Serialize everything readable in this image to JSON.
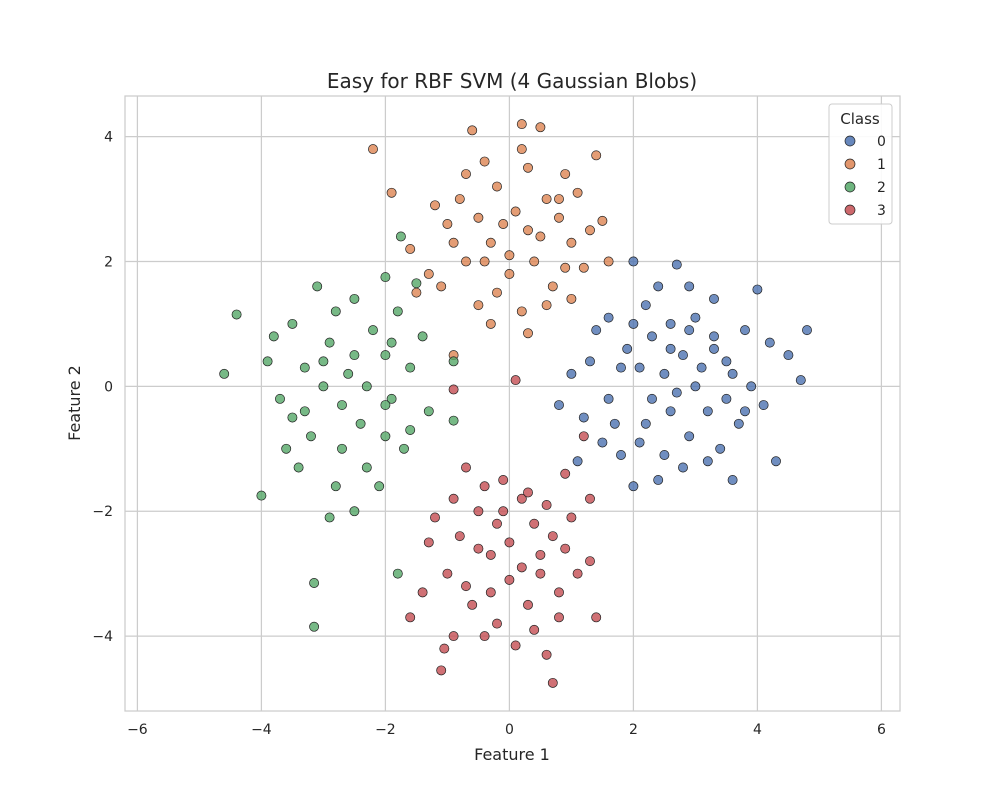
{
  "chart_data": {
    "type": "scatter",
    "title": "Easy for RBF SVM (4 Gaussian Blobs)",
    "xlabel": "Feature 1",
    "ylabel": "Feature 2",
    "xlim": [
      -6.2,
      6.3
    ],
    "ylim": [
      -5.2,
      4.65
    ],
    "xticks": [
      -6,
      -4,
      -2,
      0,
      2,
      4,
      6
    ],
    "yticks": [
      -4,
      -2,
      0,
      2,
      4
    ],
    "grid": true,
    "legend": {
      "title": "Class",
      "position": "top-right"
    },
    "series": [
      {
        "name": "0",
        "color": "#4c72b0",
        "points": [
          [
            2.5,
            0.2
          ],
          [
            3.2,
            -0.4
          ],
          [
            1.8,
            -1.1
          ],
          [
            3.8,
            0.9
          ],
          [
            2.0,
            1.0
          ],
          [
            1.3,
            0.4
          ],
          [
            2.8,
            -1.3
          ],
          [
            3.5,
            0.4
          ],
          [
            2.2,
            -0.6
          ],
          [
            4.1,
            -0.3
          ],
          [
            2.6,
            0.6
          ],
          [
            1.6,
            -0.2
          ],
          [
            3.0,
            0.0
          ],
          [
            2.4,
            -1.5
          ],
          [
            3.7,
            -0.6
          ],
          [
            2.9,
            1.6
          ],
          [
            1.5,
            -0.9
          ],
          [
            3.3,
            0.8
          ],
          [
            2.1,
            0.3
          ],
          [
            4.5,
            0.5
          ],
          [
            4.8,
            0.9
          ],
          [
            4.3,
            -1.2
          ],
          [
            2.0,
            2.0
          ],
          [
            2.7,
            1.95
          ],
          [
            1.0,
            0.2
          ],
          [
            0.8,
            -0.3
          ],
          [
            1.1,
            -1.2
          ],
          [
            3.6,
            -1.5
          ],
          [
            4.0,
            1.55
          ],
          [
            3.3,
            1.4
          ],
          [
            2.3,
            -0.2
          ],
          [
            2.9,
            -0.8
          ],
          [
            1.9,
            0.6
          ],
          [
            3.1,
            0.3
          ],
          [
            2.5,
            -1.1
          ],
          [
            3.9,
            0.0
          ],
          [
            1.7,
            -0.6
          ],
          [
            2.6,
            -0.4
          ],
          [
            3.4,
            -1.0
          ],
          [
            2.2,
            1.3
          ],
          [
            4.7,
            0.1
          ],
          [
            3.0,
            1.1
          ],
          [
            1.4,
            0.9
          ],
          [
            2.8,
            0.5
          ],
          [
            3.6,
            0.2
          ],
          [
            2.3,
            0.8
          ],
          [
            1.8,
            0.3
          ],
          [
            3.2,
            -1.2
          ],
          [
            2.0,
            -1.6
          ],
          [
            2.7,
            -0.1
          ],
          [
            1.2,
            -0.5
          ],
          [
            3.5,
            -0.2
          ],
          [
            2.4,
            1.6
          ],
          [
            4.2,
            0.7
          ],
          [
            1.6,
            1.1
          ],
          [
            2.9,
            0.9
          ],
          [
            3.8,
            -0.4
          ],
          [
            2.1,
            -0.9
          ],
          [
            3.3,
            0.6
          ],
          [
            2.6,
            1.0
          ]
        ]
      },
      {
        "name": "1",
        "color": "#dd8452",
        "points": [
          [
            -0.2,
            3.2
          ],
          [
            0.3,
            2.5
          ],
          [
            -0.7,
            2.0
          ],
          [
            0.6,
            3.0
          ],
          [
            0.0,
            1.8
          ],
          [
            -1.0,
            2.6
          ],
          [
            1.0,
            2.3
          ],
          [
            -0.4,
            3.6
          ],
          [
            0.2,
            4.2
          ],
          [
            -0.6,
            4.1
          ],
          [
            0.5,
            4.15
          ],
          [
            -2.2,
            3.8
          ],
          [
            1.4,
            3.7
          ],
          [
            -1.9,
            3.1
          ],
          [
            1.5,
            2.65
          ],
          [
            -1.5,
            1.5
          ],
          [
            0.2,
            1.2
          ],
          [
            1.2,
            1.9
          ],
          [
            1.6,
            2.0
          ],
          [
            -0.9,
            0.5
          ],
          [
            0.3,
            0.85
          ],
          [
            -0.3,
            2.3
          ],
          [
            0.8,
            2.7
          ],
          [
            -0.5,
            1.3
          ],
          [
            0.9,
            3.4
          ],
          [
            -1.2,
            2.9
          ],
          [
            0.4,
            2.0
          ],
          [
            -0.8,
            3.0
          ],
          [
            0.1,
            2.8
          ],
          [
            -0.2,
            1.5
          ],
          [
            1.1,
            3.1
          ],
          [
            -1.3,
            1.8
          ],
          [
            0.7,
            1.6
          ],
          [
            -0.5,
            2.7
          ],
          [
            0.3,
            3.5
          ],
          [
            -0.9,
            2.3
          ],
          [
            1.3,
            2.5
          ],
          [
            0.0,
            2.1
          ],
          [
            -0.3,
            1.0
          ],
          [
            0.6,
            1.3
          ],
          [
            -1.6,
            2.2
          ],
          [
            0.9,
            1.9
          ],
          [
            -0.7,
            3.4
          ],
          [
            0.2,
            3.8
          ],
          [
            -0.1,
            2.6
          ],
          [
            0.5,
            2.4
          ],
          [
            -1.1,
            1.6
          ],
          [
            1.0,
            1.4
          ],
          [
            -0.4,
            2.0
          ],
          [
            0.8,
            3.0
          ]
        ]
      },
      {
        "name": "2",
        "color": "#55a868",
        "points": [
          [
            -3.0,
            0.0
          ],
          [
            -2.5,
            0.5
          ],
          [
            -3.5,
            -0.5
          ],
          [
            -2.0,
            -0.8
          ],
          [
            -2.8,
            1.2
          ],
          [
            -1.6,
            0.3
          ],
          [
            -3.8,
            0.8
          ],
          [
            -2.3,
            -1.3
          ],
          [
            -4.6,
            0.2
          ],
          [
            -4.4,
            1.15
          ],
          [
            -4.0,
            -1.75
          ],
          [
            -3.15,
            -3.15
          ],
          [
            -3.15,
            -3.85
          ],
          [
            -2.0,
            1.75
          ],
          [
            -1.5,
            1.65
          ],
          [
            -1.75,
            2.4
          ],
          [
            -2.9,
            -2.1
          ],
          [
            -2.5,
            -2.0
          ],
          [
            -1.8,
            -3.0
          ],
          [
            -0.9,
            0.4
          ],
          [
            -0.9,
            -0.55
          ],
          [
            -3.3,
            0.3
          ],
          [
            -2.7,
            -0.3
          ],
          [
            -2.2,
            0.9
          ],
          [
            -3.6,
            -1.0
          ],
          [
            -1.9,
            -0.2
          ],
          [
            -3.1,
            1.6
          ],
          [
            -2.4,
            -0.6
          ],
          [
            -1.3,
            -0.4
          ],
          [
            -3.9,
            0.4
          ],
          [
            -2.6,
            0.2
          ],
          [
            -2.0,
            0.5
          ],
          [
            -3.4,
            -1.3
          ],
          [
            -1.7,
            -1.0
          ],
          [
            -2.9,
            0.7
          ],
          [
            -2.1,
            -1.6
          ],
          [
            -3.2,
            -0.8
          ],
          [
            -1.4,
            0.8
          ],
          [
            -2.5,
            1.4
          ],
          [
            -3.7,
            -0.2
          ],
          [
            -2.8,
            -1.6
          ],
          [
            -1.8,
            1.2
          ],
          [
            -3.0,
            0.4
          ],
          [
            -2.3,
            0.0
          ],
          [
            -1.6,
            -0.7
          ],
          [
            -3.5,
            1.0
          ],
          [
            -2.7,
            -1.0
          ],
          [
            -2.0,
            -0.3
          ],
          [
            -3.3,
            -0.4
          ],
          [
            -1.9,
            0.7
          ]
        ]
      },
      {
        "name": "3",
        "color": "#c44e52",
        "points": [
          [
            0.0,
            -2.5
          ],
          [
            0.5,
            -3.0
          ],
          [
            -0.5,
            -2.0
          ],
          [
            0.2,
            -1.8
          ],
          [
            -0.7,
            -3.2
          ],
          [
            0.9,
            -2.6
          ],
          [
            -0.2,
            -3.8
          ],
          [
            0.6,
            -4.3
          ],
          [
            0.7,
            -4.75
          ],
          [
            -1.1,
            -4.55
          ],
          [
            -1.05,
            -4.2
          ],
          [
            -0.9,
            -4.0
          ],
          [
            0.1,
            -4.15
          ],
          [
            0.1,
            0.1
          ],
          [
            -0.9,
            -0.05
          ],
          [
            1.4,
            -3.7
          ],
          [
            -1.6,
            -3.7
          ],
          [
            1.2,
            -0.8
          ],
          [
            1.3,
            -1.8
          ],
          [
            -1.3,
            -2.5
          ],
          [
            -0.3,
            -2.7
          ],
          [
            0.4,
            -2.2
          ],
          [
            -0.6,
            -3.5
          ],
          [
            0.8,
            -3.3
          ],
          [
            -0.1,
            -1.5
          ],
          [
            0.3,
            -3.5
          ],
          [
            -0.8,
            -2.4
          ],
          [
            1.0,
            -2.1
          ],
          [
            -0.4,
            -1.6
          ],
          [
            0.6,
            -1.9
          ],
          [
            -1.0,
            -3.0
          ],
          [
            0.2,
            -2.9
          ],
          [
            -0.5,
            -2.6
          ],
          [
            1.1,
            -3.0
          ],
          [
            -0.2,
            -2.2
          ],
          [
            0.7,
            -2.4
          ],
          [
            -0.9,
            -1.8
          ],
          [
            0.4,
            -3.9
          ],
          [
            -0.3,
            -3.3
          ],
          [
            0.9,
            -1.4
          ],
          [
            -1.2,
            -2.1
          ],
          [
            0.0,
            -3.1
          ],
          [
            0.5,
            -2.7
          ],
          [
            -0.7,
            -1.3
          ],
          [
            0.3,
            -1.7
          ],
          [
            -0.4,
            -4.0
          ],
          [
            1.3,
            -2.8
          ],
          [
            -1.4,
            -3.3
          ],
          [
            0.8,
            -3.7
          ],
          [
            -0.1,
            -2.0
          ]
        ]
      }
    ]
  }
}
